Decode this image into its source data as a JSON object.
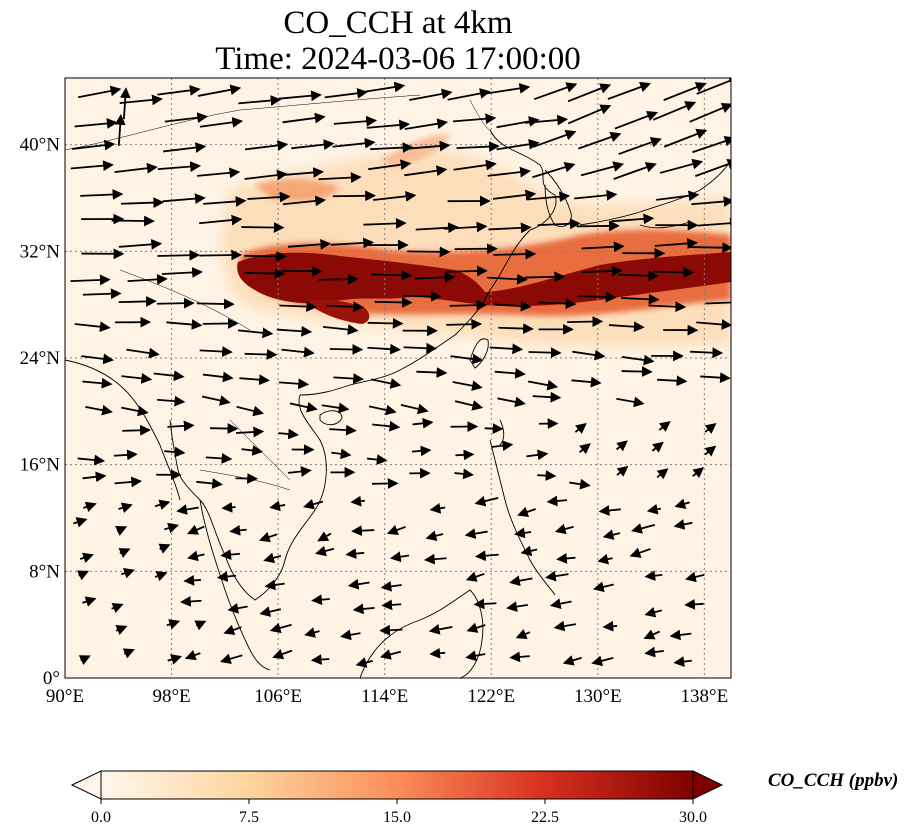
{
  "title": {
    "line1": "CO_CCH at 4km",
    "line2": "Time: 2024-03-06 17:00:00"
  },
  "map": {
    "projection": "PlateCarree",
    "lon_range": [
      90,
      140
    ],
    "lat_range": [
      0,
      45
    ],
    "gridlines": "dotted",
    "x_ticks": [
      {
        "value": 90,
        "label": "90°E"
      },
      {
        "value": 98,
        "label": "98°E"
      },
      {
        "value": 106,
        "label": "106°E"
      },
      {
        "value": 114,
        "label": "114°E"
      },
      {
        "value": 122,
        "label": "122°E"
      },
      {
        "value": 130,
        "label": "130°E"
      },
      {
        "value": 138,
        "label": "138°E"
      }
    ],
    "y_ticks": [
      {
        "value": 0,
        "label": "0°"
      },
      {
        "value": 8,
        "label": "8°N"
      },
      {
        "value": 16,
        "label": "16°N"
      },
      {
        "value": 24,
        "label": "24°N"
      },
      {
        "value": 32,
        "label": "32°N"
      },
      {
        "value": 40,
        "label": "40°N"
      }
    ],
    "field": "CO_CCH",
    "wind_vectors": "westerly flow north of ~20°N, weak easterlies in the tropics",
    "colors": {
      "background": "#fef3e4",
      "low": "#fff5eb",
      "mid": "#fdae6b",
      "high": "#d94801",
      "max": "#7f0000",
      "coast": "#000000",
      "grid": "#7f7f7f"
    }
  },
  "colorbar": {
    "label": "CO_CCH (ppbv)",
    "min": 0.0,
    "max": 30.0,
    "extend": "both",
    "colormap": "OrRd",
    "ticks": [
      {
        "value": 0.0,
        "label": "0.0"
      },
      {
        "value": 7.5,
        "label": "7.5"
      },
      {
        "value": 15.0,
        "label": "15.0"
      },
      {
        "value": 22.5,
        "label": "22.5"
      },
      {
        "value": 30.0,
        "label": "30.0"
      }
    ]
  }
}
